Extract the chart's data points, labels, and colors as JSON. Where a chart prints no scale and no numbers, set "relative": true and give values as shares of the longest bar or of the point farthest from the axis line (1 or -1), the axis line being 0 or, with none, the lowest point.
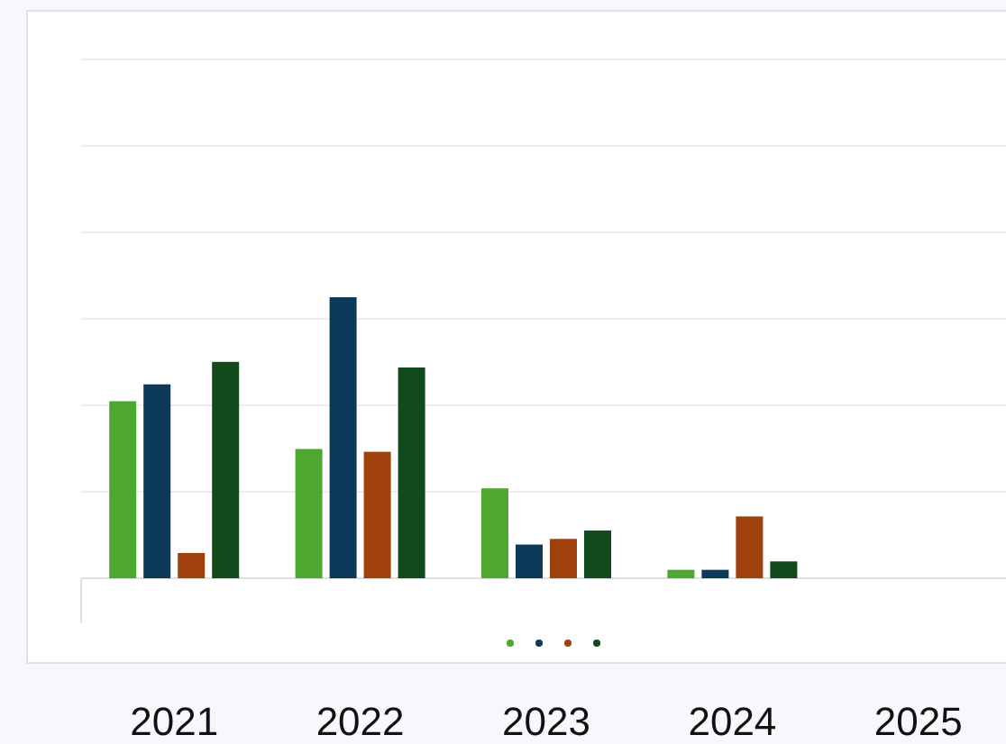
{
  "chart_data": {
    "type": "bar",
    "relative": true,
    "grid": true,
    "categories": [
      "2021",
      "2022",
      "2023",
      "2024",
      "2025"
    ],
    "series": [
      {
        "color": "#4ea72e",
        "values": [
          0.63,
          0.46,
          0.32,
          0.03,
          null
        ]
      },
      {
        "color": "#0e3a5a",
        "values": [
          0.69,
          1,
          0.12,
          0.03,
          null
        ]
      },
      {
        "color": "#a0410d",
        "values": [
          0.09,
          0.45,
          0.14,
          0.22,
          null
        ]
      },
      {
        "color": "#124a1c",
        "values": [
          0.77,
          0.75,
          0.17,
          0.06,
          null
        ]
      }
    ]
  }
}
